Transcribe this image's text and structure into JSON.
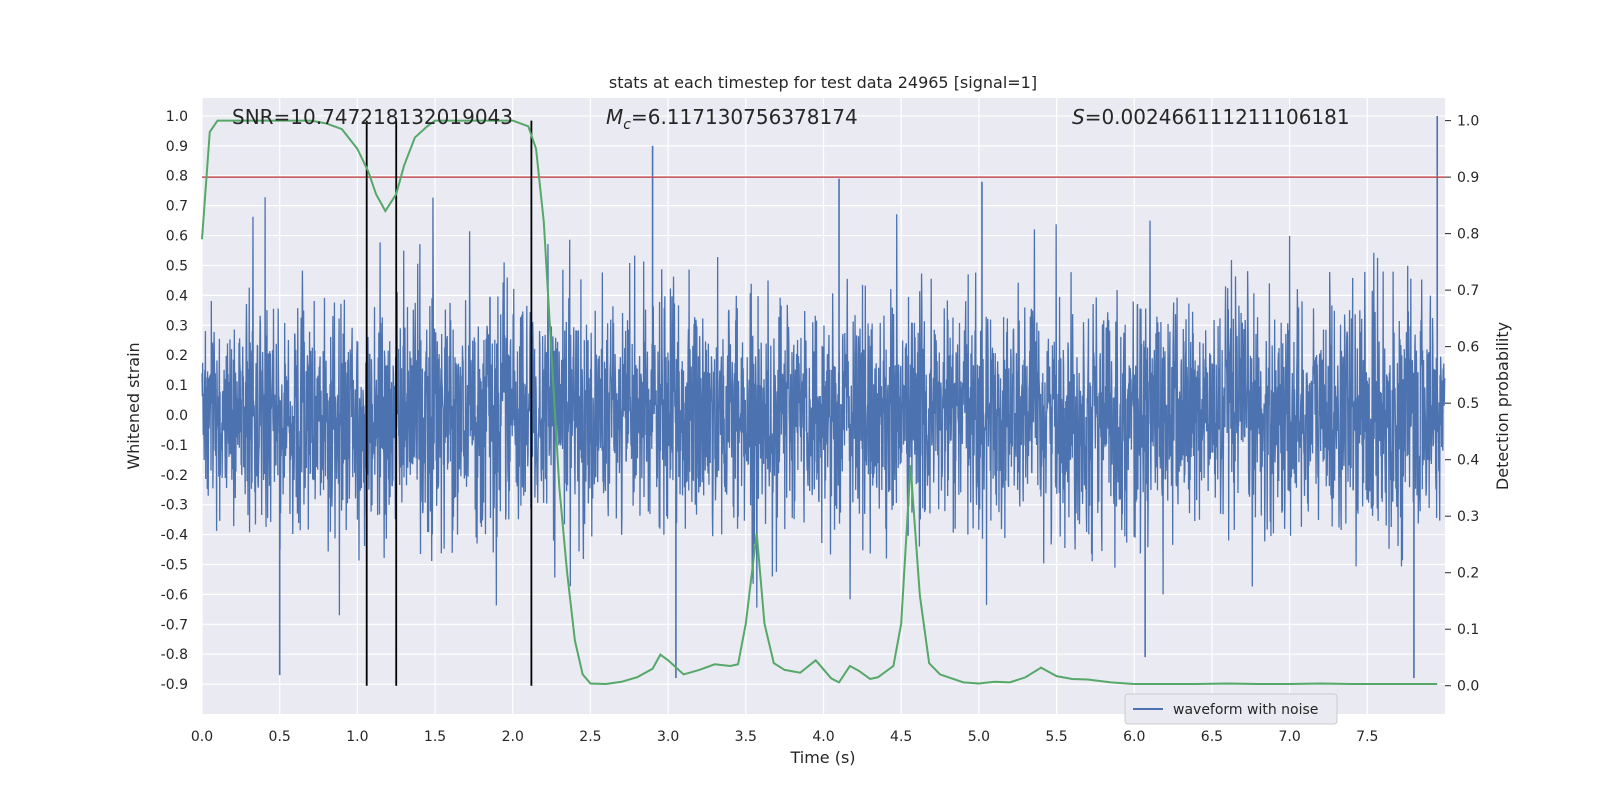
{
  "chart_data": {
    "type": "line",
    "title": "stats at each timestep for test data 24965 [signal=1]",
    "xlabel": "Time (s)",
    "ylabel": "Whitened strain",
    "y2label": "Detection probability",
    "xlim": [
      0.0,
      8.0
    ],
    "ylim": [
      -1.0,
      1.06
    ],
    "y2lim": [
      -0.05,
      1.04
    ],
    "xticks": [
      "0.0",
      "0.5",
      "1.0",
      "1.5",
      "2.0",
      "2.5",
      "3.0",
      "3.5",
      "4.0",
      "4.5",
      "5.0",
      "5.5",
      "6.0",
      "6.5",
      "7.0",
      "7.5"
    ],
    "xtick_values": [
      0.0,
      0.5,
      1.0,
      1.5,
      2.0,
      2.5,
      3.0,
      3.5,
      4.0,
      4.5,
      5.0,
      5.5,
      6.0,
      6.5,
      7.0,
      7.5
    ],
    "yticks": [
      "1.0",
      "0.9",
      "0.8",
      "0.7",
      "0.6",
      "0.5",
      "0.4",
      "0.3",
      "0.2",
      "0.1",
      "0.0",
      "-0.1",
      "-0.2",
      "-0.3",
      "-0.4",
      "-0.5",
      "-0.6",
      "-0.7",
      "-0.8",
      "-0.9"
    ],
    "ytick_values": [
      1.0,
      0.9,
      0.8,
      0.7,
      0.6,
      0.5,
      0.4,
      0.3,
      0.2,
      0.1,
      0.0,
      -0.1,
      -0.2,
      -0.3,
      -0.4,
      -0.5,
      -0.6,
      -0.7,
      -0.8,
      -0.9
    ],
    "y2ticks": [
      "1.0",
      "0.9",
      "0.8",
      "0.7",
      "0.6",
      "0.5",
      "0.4",
      "0.3",
      "0.2",
      "0.1",
      "0.0"
    ],
    "y2tick_values": [
      1.0,
      0.9,
      0.8,
      0.7,
      0.6,
      0.5,
      0.4,
      0.3,
      0.2,
      0.1,
      0.0
    ],
    "grid": true,
    "legend_position": "bottom-right",
    "annotations": {
      "snr": "SNR=10.747218132019043",
      "mc_symbol": "M",
      "mc_sub": "c",
      "mc_value": "=6.117130756378174",
      "s_symbol": "S",
      "s_value": "=0.002466111211106181"
    },
    "colors": {
      "waveform": "#4c72b0",
      "probability": "#55a868",
      "threshold": "#c44e52",
      "markers": "#000000",
      "background": "#eaeaf2"
    },
    "series": [
      {
        "name": "waveform with noise",
        "axis": "left",
        "style": "noise",
        "envelope_typical": 0.42,
        "envelope_min": -0.87,
        "envelope_max": 1.0,
        "spikes": [
          {
            "x": 0.5,
            "y": -0.87
          },
          {
            "x": 2.9,
            "y": 0.9
          },
          {
            "x": 3.05,
            "y": -0.88
          },
          {
            "x": 4.1,
            "y": 0.79
          },
          {
            "x": 5.02,
            "y": 0.78
          },
          {
            "x": 6.07,
            "y": -0.81
          },
          {
            "x": 7.8,
            "y": -0.88
          },
          {
            "x": 7.95,
            "y": 1.0
          }
        ]
      },
      {
        "name": "",
        "axis": "right",
        "style": "line",
        "x": [
          0.0,
          0.05,
          0.1,
          0.2,
          0.3,
          0.5,
          0.7,
          0.8,
          0.9,
          1.0,
          1.07,
          1.12,
          1.18,
          1.25,
          1.3,
          1.37,
          1.45,
          1.5,
          1.6,
          1.8,
          2.0,
          2.1,
          2.15,
          2.2,
          2.3,
          2.35,
          2.4,
          2.45,
          2.5,
          2.6,
          2.7,
          2.8,
          2.9,
          2.95,
          3.0,
          3.1,
          3.2,
          3.3,
          3.4,
          3.45,
          3.5,
          3.57,
          3.62,
          3.68,
          3.75,
          3.85,
          3.95,
          4.05,
          4.1,
          4.17,
          4.23,
          4.3,
          4.35,
          4.45,
          4.5,
          4.56,
          4.62,
          4.68,
          4.75,
          4.9,
          5.0,
          5.1,
          5.2,
          5.3,
          5.4,
          5.5,
          5.6,
          5.7,
          5.85,
          6.0,
          6.2,
          6.4,
          6.6,
          6.8,
          7.0,
          7.2,
          7.4,
          7.6,
          7.8,
          7.95
        ],
        "values": [
          0.79,
          0.98,
          1.0,
          1.0,
          1.0,
          1.0,
          1.0,
          0.995,
          0.985,
          0.95,
          0.91,
          0.87,
          0.84,
          0.87,
          0.92,
          0.97,
          0.99,
          1.0,
          1.0,
          1.0,
          1.0,
          0.99,
          0.95,
          0.82,
          0.35,
          0.2,
          0.08,
          0.02,
          0.004,
          0.003,
          0.007,
          0.015,
          0.03,
          0.055,
          0.045,
          0.02,
          0.028,
          0.038,
          0.035,
          0.038,
          0.11,
          0.27,
          0.11,
          0.04,
          0.028,
          0.023,
          0.045,
          0.013,
          0.006,
          0.035,
          0.026,
          0.012,
          0.015,
          0.035,
          0.11,
          0.39,
          0.16,
          0.04,
          0.02,
          0.006,
          0.004,
          0.007,
          0.006,
          0.015,
          0.032,
          0.017,
          0.012,
          0.011,
          0.006,
          0.003,
          0.003,
          0.003,
          0.004,
          0.003,
          0.003,
          0.004,
          0.003,
          0.003,
          0.003,
          0.003
        ]
      }
    ],
    "threshold_line": {
      "axis": "right",
      "value": 0.9
    },
    "vertical_lines": [
      1.06,
      1.25,
      2.12
    ]
  }
}
